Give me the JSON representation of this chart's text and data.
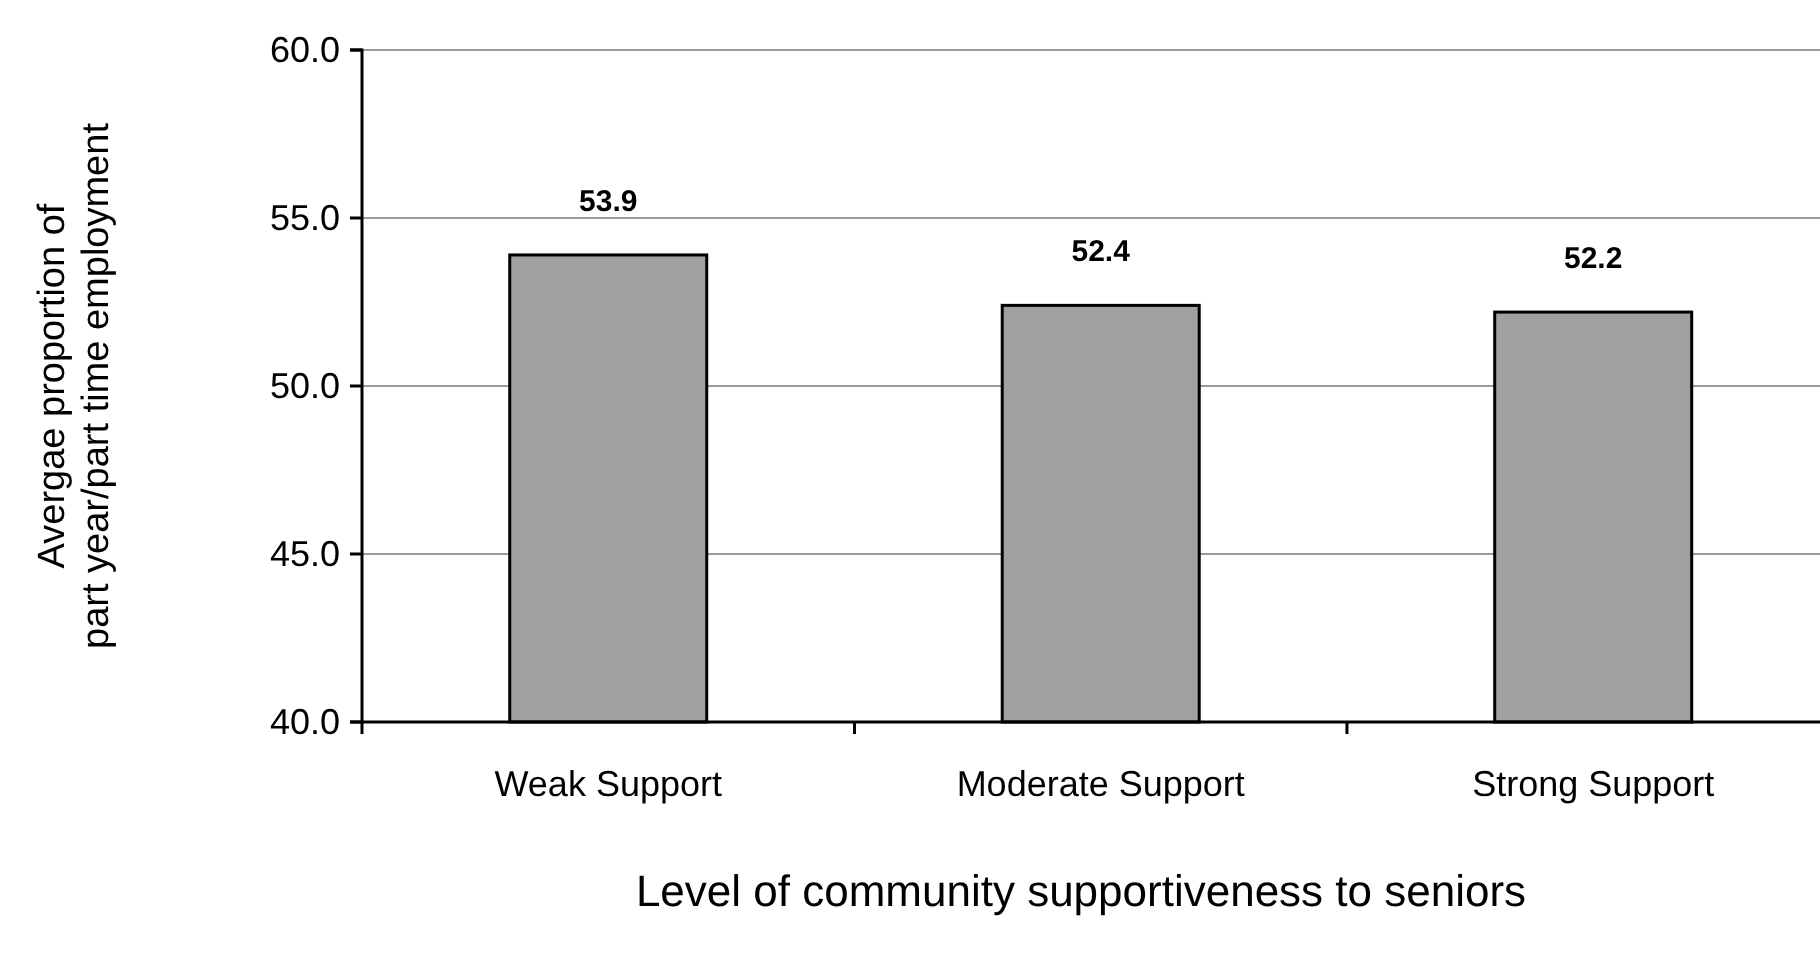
{
  "chart_data": {
    "type": "bar",
    "categories": [
      "Weak Support",
      "Moderate Support",
      "Strong Support"
    ],
    "values": [
      53.9,
      52.4,
      52.2
    ],
    "color": "#a0a0a0",
    "xlabel": "Level of community supportiveness to seniors",
    "ylabel": "Avergae proportion of\npart year/part time employment",
    "ylim": [
      40,
      60
    ],
    "yticks": [
      {
        "value": 40,
        "label": "40.0"
      },
      {
        "value": 45,
        "label": "45.0"
      },
      {
        "value": 50,
        "label": "50.0"
      },
      {
        "value": 55,
        "label": "55.0"
      },
      {
        "value": 60,
        "label": "60.0"
      }
    ],
    "grid": "y",
    "data_labels": true
  }
}
